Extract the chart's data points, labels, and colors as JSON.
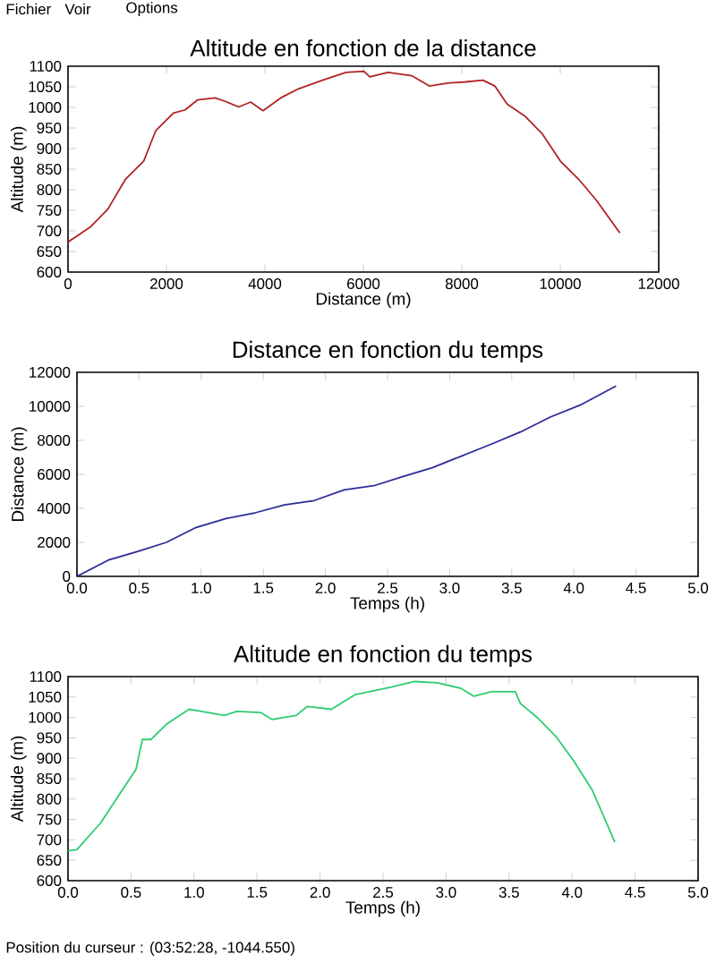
{
  "chart_data": [
    {
      "type": "line",
      "title": "Altitude en fonction de la distance",
      "xlabel": "Distance (m)",
      "ylabel": "Altitude (m)",
      "xlim": [
        0,
        12000
      ],
      "ylim": [
        600,
        1100
      ],
      "xticks": [
        0,
        2000,
        4000,
        6000,
        8000,
        10000,
        12000
      ],
      "yticks": [
        600,
        650,
        700,
        750,
        800,
        850,
        900,
        950,
        1000,
        1050,
        1100
      ],
      "marker": "none",
      "line_style": "solid",
      "annotations": [
        "Fichier",
        "Voir",
        "Options"
      ],
      "series": [
        {
          "color": "#b22222",
          "x": [
            0,
            450,
            810,
            1170,
            1540,
            1780,
            2140,
            2380,
            2630,
            2990,
            3230,
            3470,
            3710,
            3960,
            4320,
            4680,
            5170,
            5650,
            6010,
            6130,
            6500,
            6980,
            7340,
            7710,
            8070,
            8430,
            8670,
            8920,
            9280,
            9640,
            10000,
            10370,
            10730,
            11210
          ],
          "values": [
            673,
            709,
            753,
            826,
            870,
            943,
            986,
            994,
            1018,
            1023,
            1013,
            1001,
            1013,
            992,
            1023,
            1045,
            1066,
            1085,
            1088,
            1074,
            1085,
            1077,
            1052,
            1059,
            1062,
            1066,
            1052,
            1008,
            979,
            935,
            870,
            826,
            775,
            695
          ]
        }
      ]
    },
    {
      "type": "line",
      "title": "Distance en fonction du temps",
      "xlabel": "Temps (h)",
      "ylabel": "Distance (m)",
      "xlim": [
        0,
        5
      ],
      "ylim": [
        0,
        12000
      ],
      "xticks": [
        {
          "value": 0,
          "label": "0.0"
        },
        {
          "value": 0.5,
          "label": "0.5"
        },
        {
          "value": 1,
          "label": "1.0"
        },
        {
          "value": 1.5,
          "label": "1.5"
        },
        {
          "value": 2,
          "label": "2.0"
        },
        {
          "value": 2.5,
          "label": "2.5"
        },
        {
          "value": 3,
          "label": "3.0"
        },
        {
          "value": 3.5,
          "label": "3.5"
        },
        {
          "value": 4,
          "label": "4.0"
        },
        {
          "value": 4.5,
          "label": "4.5"
        },
        {
          "value": 5,
          "label": "5.0"
        }
      ],
      "yticks": [
        0,
        2000,
        4000,
        6000,
        8000,
        10000,
        12000
      ],
      "marker": "none",
      "line_style": "solid",
      "series": [
        {
          "color": "#2b2b9a",
          "x": [
            0,
            0.25,
            0.49,
            0.72,
            0.96,
            1.2,
            1.44,
            1.67,
            1.91,
            2.15,
            2.39,
            2.62,
            2.86,
            3.1,
            3.34,
            3.57,
            3.81,
            4.05,
            4.34
          ],
          "values": [
            0,
            950,
            1470,
            2000,
            2880,
            3400,
            3750,
            4210,
            4460,
            5090,
            5330,
            5860,
            6390,
            7090,
            7790,
            8490,
            9370,
            10070,
            11200
          ]
        }
      ]
    },
    {
      "type": "line",
      "title": "Altitude en fonction du temps",
      "xlabel": "Temps (h)",
      "ylabel": "Altitude (m)",
      "xlim": [
        0,
        5
      ],
      "ylim": [
        600,
        1100
      ],
      "xticks": [
        {
          "value": 0,
          "label": "0.0"
        },
        {
          "value": 0.5,
          "label": "0.5"
        },
        {
          "value": 1,
          "label": "1.0"
        },
        {
          "value": 1.5,
          "label": "1.5"
        },
        {
          "value": 2,
          "label": "2.0"
        },
        {
          "value": 2.5,
          "label": "2.5"
        },
        {
          "value": 3,
          "label": "3.0"
        },
        {
          "value": 3.5,
          "label": "3.5"
        },
        {
          "value": 4,
          "label": "4.0"
        },
        {
          "value": 4.5,
          "label": "4.5"
        },
        {
          "value": 5,
          "label": "5.0"
        }
      ],
      "yticks": [
        600,
        650,
        700,
        750,
        800,
        850,
        900,
        950,
        1000,
        1050,
        1100
      ],
      "marker": "none",
      "line_style": "solid",
      "annotations": [
        "Position du curseur : (03:52:28, -1044.550)"
      ],
      "series": [
        {
          "color": "#2ecc71",
          "x": [
            0,
            0.07,
            0.26,
            0.4,
            0.54,
            0.59,
            0.66,
            0.78,
            0.96,
            1.06,
            1.24,
            1.34,
            1.53,
            1.62,
            1.81,
            1.9,
            2.09,
            2.28,
            2.56,
            2.75,
            2.93,
            3.12,
            3.22,
            3.36,
            3.55,
            3.59,
            3.73,
            3.87,
            4.01,
            4.16,
            4.34
          ],
          "values": [
            673,
            676,
            742,
            808,
            873,
            946,
            946,
            983,
            1020,
            1015,
            1005,
            1015,
            1012,
            995,
            1005,
            1027,
            1020,
            1056,
            1074,
            1088,
            1085,
            1071,
            1052,
            1063,
            1063,
            1034,
            998,
            954,
            895,
            822,
            694
          ]
        }
      ]
    }
  ]
}
